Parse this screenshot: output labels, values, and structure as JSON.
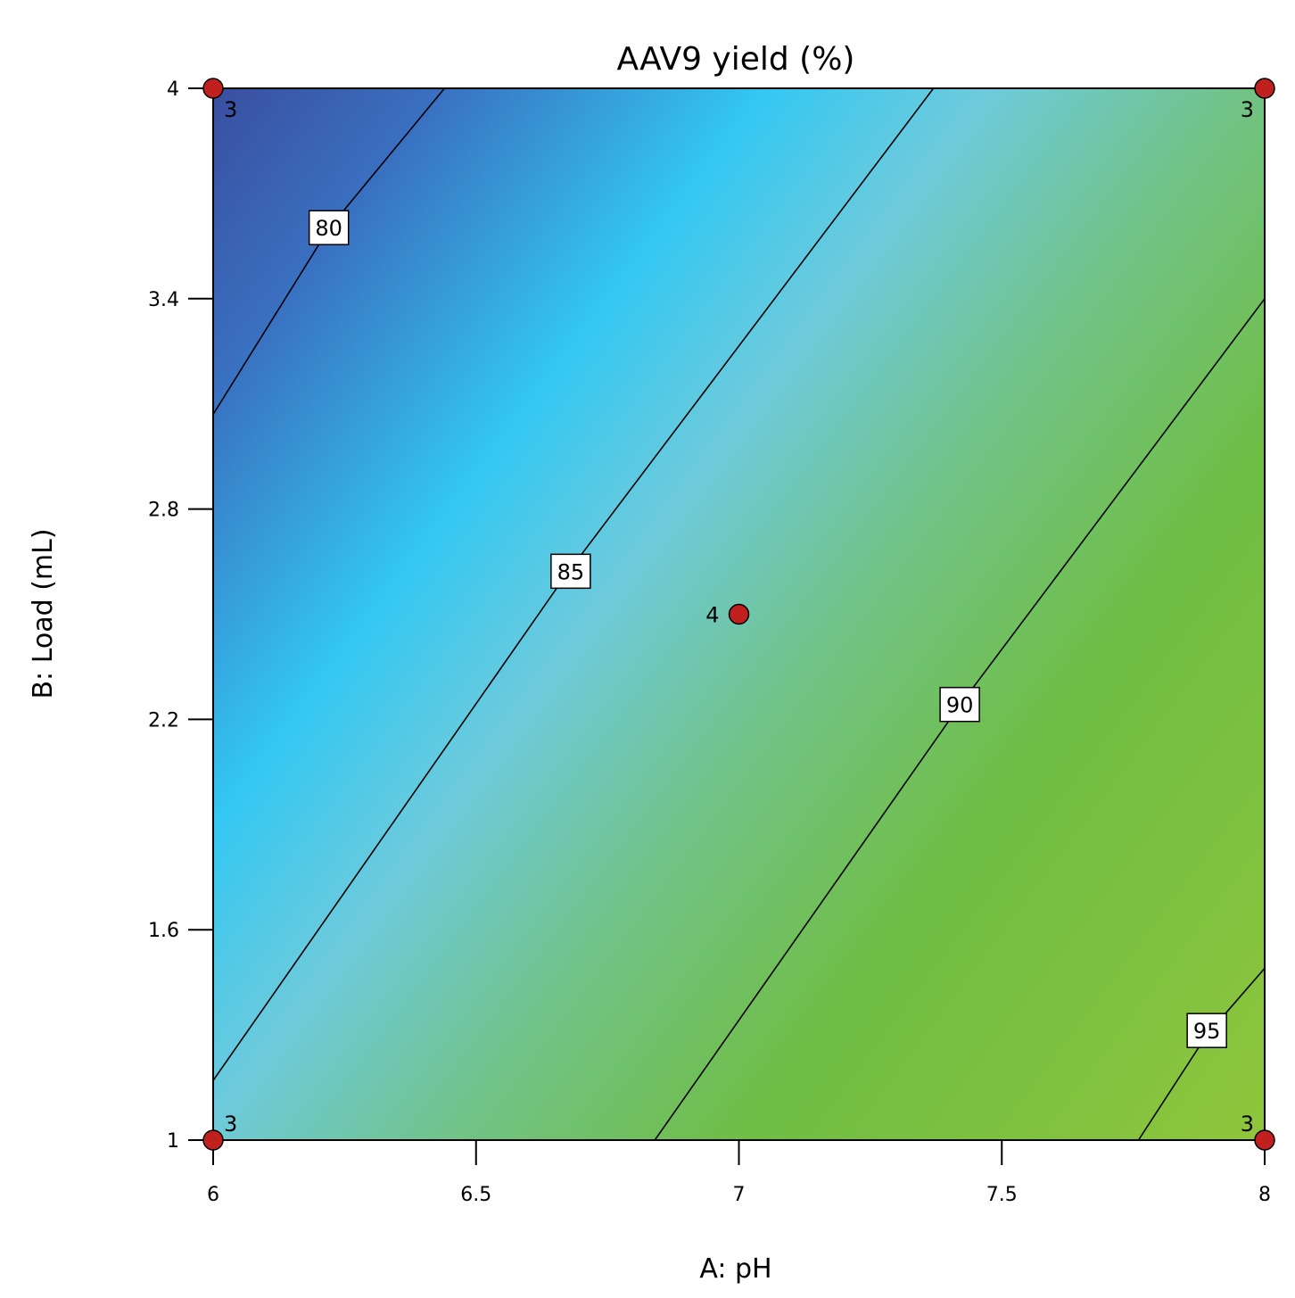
{
  "chart_data": {
    "type": "heatmap",
    "title": "AAV9 yield (%)",
    "xlabel": "A: pH",
    "ylabel": "B: Load (mL)",
    "xlim": [
      6,
      8
    ],
    "ylim": [
      1,
      4
    ],
    "x_ticks": [
      6,
      6.5,
      7,
      7.5,
      8
    ],
    "x_tick_labels": [
      "6",
      "6.5",
      "7",
      "7.5",
      "8"
    ],
    "y_ticks": [
      1,
      1.6,
      2.2,
      2.8,
      3.4,
      4
    ],
    "y_tick_labels": [
      "1",
      "1.6",
      "2.2",
      "2.8",
      "3.4",
      "4"
    ],
    "grid": false,
    "colorscale": [
      "#3a4fa0",
      "#3a6fc0",
      "#33c8f3",
      "#6ecbdc",
      "#72c387",
      "#6fbe44",
      "#8fc63c"
    ],
    "contours": [
      {
        "level": 80,
        "label": "80",
        "points": [
          [
            6.0,
            3.07
          ],
          [
            6.22,
            3.6
          ],
          [
            6.44,
            4.0
          ]
        ],
        "label_at": [
          6.22,
          3.6
        ]
      },
      {
        "level": 85,
        "label": "85",
        "points": [
          [
            6.0,
            1.17
          ],
          [
            6.67,
            2.61
          ],
          [
            7.37,
            4.0
          ]
        ],
        "label_at": [
          6.68,
          2.62
        ]
      },
      {
        "level": 90,
        "label": "90",
        "points": [
          [
            6.84,
            1.0
          ],
          [
            7.42,
            2.24
          ],
          [
            8.0,
            3.4
          ]
        ],
        "label_at": [
          7.42,
          2.24
        ]
      },
      {
        "level": 95,
        "label": "95",
        "points": [
          [
            7.76,
            1.0
          ],
          [
            7.89,
            1.3
          ],
          [
            8.0,
            1.49
          ]
        ],
        "label_at": [
          7.89,
          1.31
        ]
      }
    ],
    "design_points": [
      {
        "x": 6,
        "y": 4,
        "count": "3"
      },
      {
        "x": 8,
        "y": 4,
        "count": "3"
      },
      {
        "x": 7,
        "y": 2.5,
        "count": "4"
      },
      {
        "x": 6,
        "y": 1,
        "count": "3"
      },
      {
        "x": 8,
        "y": 1,
        "count": "3"
      }
    ],
    "point_color": "#c0201e"
  }
}
